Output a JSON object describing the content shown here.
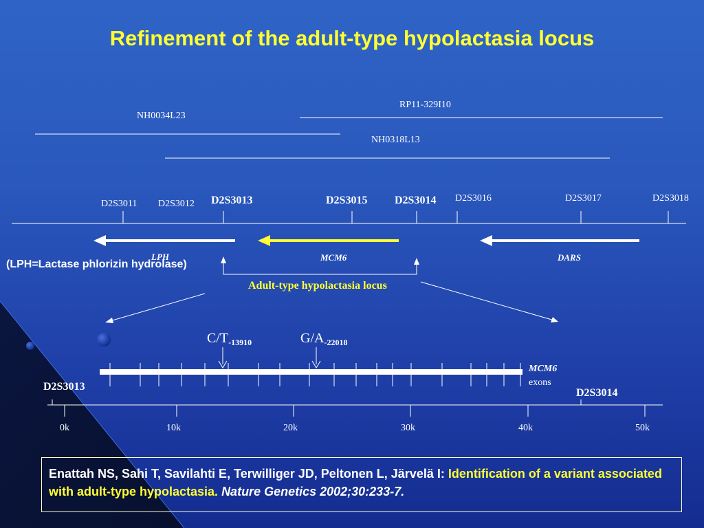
{
  "title": "Refinement of the adult-type hypolactasia locus",
  "clones": [
    "RP11-329I10",
    "NH0034L23",
    "NH0318L13"
  ],
  "markers": {
    "d2s3011": "D2S3011",
    "d2s3012": "D2S3012",
    "d2s3013": "D2S3013",
    "d2s3015": "D2S3015",
    "d2s3014": "D2S3014",
    "d2s3016": "D2S3016",
    "d2s3017": "D2S3017",
    "d2s3018": "D2S3018"
  },
  "genes": {
    "lph": "LPH",
    "mcm6": "MCM6",
    "dars": "DARS"
  },
  "lph_note": "(LPH=Lactase phlorizin hydrolase)",
  "locus_label": "Adult-type hypolactasia locus",
  "variants": [
    {
      "allele": "C/T",
      "position": "-13910"
    },
    {
      "allele": "G/A",
      "position": "-22018"
    }
  ],
  "exon_label": {
    "gene": "MCM6",
    "word": "exons"
  },
  "detail_markers": {
    "left": "D2S3013",
    "right": "D2S3014"
  },
  "scale_ticks": [
    "0k",
    "10k",
    "20k",
    "30k",
    "40k",
    "50k"
  ],
  "colors": {
    "highlight": "#ffff33",
    "background": "#2a58bc",
    "line": "#ffffff"
  },
  "reference": {
    "authors": "Enattah NS, Sahi T, Savilahti E, Terwilliger JD, Peltonen L, Järvelä I:",
    "title": "Identification of a variant associated with adult-type hypolactasia.",
    "journal": "Nature Genetics 2002;30:233-7."
  }
}
